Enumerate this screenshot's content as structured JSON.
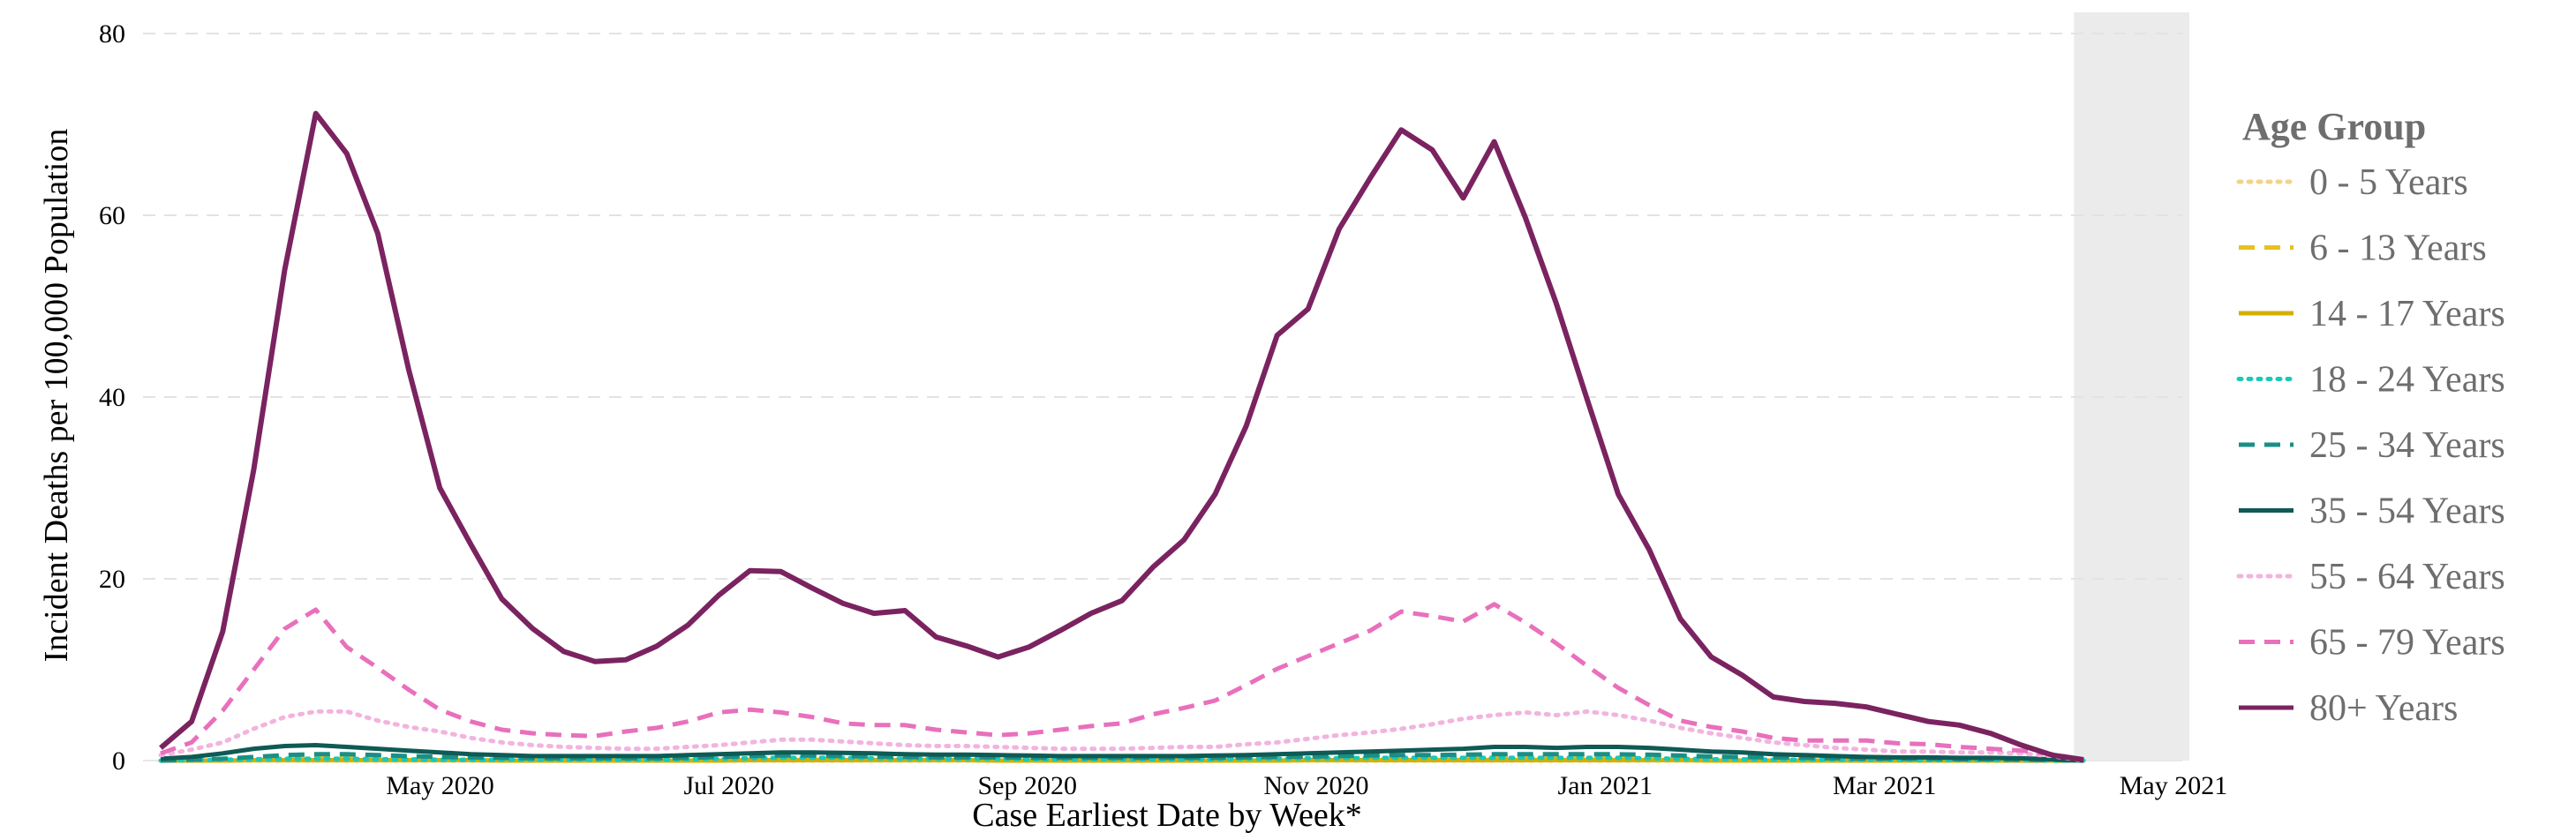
{
  "chart_data": {
    "type": "line",
    "title": "",
    "xlabel": "Case Earliest Date by Week*",
    "ylabel": "Incident Deaths per 100,000 Population",
    "ylim": [
      0,
      80
    ],
    "yticks": [
      0,
      20,
      40,
      60,
      80
    ],
    "x_range_days": [
      0,
      406
    ],
    "xticks": [
      {
        "label": "May 2020",
        "day": 59
      },
      {
        "label": "Jul 2020",
        "day": 120
      },
      {
        "label": "Sep 2020",
        "day": 183
      },
      {
        "label": "Nov 2020",
        "day": 244
      },
      {
        "label": "Jan 2021",
        "day": 305
      },
      {
        "label": "Mar 2021",
        "day": 364
      },
      {
        "label": "May 2021",
        "day": 425
      }
    ],
    "x_origin_note": "day 0 = 2020-03-03",
    "shaded_region_days": [
      404,
      425
    ],
    "legend_title": "Age Group",
    "series": [
      {
        "name": "0 - 5 Years",
        "color": "#f0d48a",
        "dash": "dotted",
        "values": [
          0,
          0,
          0,
          0,
          0,
          0,
          0,
          0,
          0,
          0,
          0,
          0,
          0,
          0,
          0,
          0,
          0,
          0,
          0,
          0,
          0,
          0,
          0,
          0,
          0,
          0,
          0,
          0,
          0,
          0,
          0,
          0,
          0,
          0,
          0,
          0,
          0,
          0,
          0,
          0,
          0,
          0,
          0,
          0,
          0,
          0,
          0,
          0,
          0,
          0,
          0,
          0,
          0,
          0,
          0,
          0,
          0,
          0,
          0,
          0,
          0,
          0,
          0
        ]
      },
      {
        "name": "6 - 13 Years",
        "color": "#e8c020",
        "dash": "dashed",
        "values": [
          0,
          0.05,
          0.1,
          0.2,
          0.3,
          0.4,
          0.4,
          0.35,
          0.3,
          0.25,
          0.2,
          0.15,
          0.15,
          0.1,
          0.1,
          0.1,
          0.1,
          0.1,
          0.15,
          0.2,
          0.25,
          0.3,
          0.3,
          0.3,
          0.25,
          0.2,
          0.2,
          0.2,
          0.15,
          0.15,
          0.15,
          0.15,
          0.2,
          0.2,
          0.2,
          0.25,
          0.3,
          0.35,
          0.4,
          0.4,
          0.4,
          0.4,
          0.45,
          0.5,
          0.45,
          0.4,
          0.45,
          0.4,
          0.35,
          0.3,
          0.25,
          0.2,
          0.2,
          0.15,
          0.15,
          0.1,
          0.1,
          0.1,
          0.1,
          0.05,
          0.05,
          0.05,
          0
        ]
      },
      {
        "name": "14 - 17 Years",
        "color": "#d4b000",
        "dash": "solid",
        "values": [
          0,
          0,
          0,
          0.05,
          0.05,
          0.05,
          0.05,
          0.05,
          0.05,
          0.05,
          0.05,
          0,
          0,
          0,
          0,
          0,
          0,
          0,
          0,
          0.05,
          0.05,
          0.05,
          0.05,
          0.05,
          0.05,
          0.05,
          0.05,
          0,
          0,
          0,
          0,
          0,
          0,
          0,
          0,
          0,
          0,
          0.05,
          0.05,
          0.05,
          0.05,
          0.05,
          0.05,
          0.05,
          0.05,
          0.05,
          0.05,
          0.05,
          0.05,
          0.05,
          0,
          0,
          0,
          0,
          0,
          0,
          0,
          0,
          0,
          0,
          0,
          0,
          0
        ]
      },
      {
        "name": "18 - 24 Years",
        "color": "#1cc8b8",
        "dash": "dotted",
        "values": [
          0,
          0.05,
          0.1,
          0.15,
          0.2,
          0.2,
          0.2,
          0.15,
          0.15,
          0.1,
          0.1,
          0.1,
          0.1,
          0.1,
          0.1,
          0.1,
          0.1,
          0.15,
          0.2,
          0.25,
          0.3,
          0.3,
          0.3,
          0.25,
          0.2,
          0.2,
          0.2,
          0.2,
          0.15,
          0.15,
          0.15,
          0.15,
          0.15,
          0.15,
          0.15,
          0.2,
          0.2,
          0.25,
          0.25,
          0.3,
          0.3,
          0.3,
          0.3,
          0.3,
          0.3,
          0.3,
          0.3,
          0.3,
          0.25,
          0.2,
          0.15,
          0.15,
          0.1,
          0.1,
          0.1,
          0.1,
          0.1,
          0.05,
          0.05,
          0.05,
          0.05,
          0,
          0
        ]
      },
      {
        "name": "25 - 34 Years",
        "color": "#1a8f86",
        "dash": "dashed",
        "values": [
          0,
          0.1,
          0.2,
          0.4,
          0.6,
          0.7,
          0.7,
          0.6,
          0.5,
          0.4,
          0.35,
          0.3,
          0.25,
          0.25,
          0.25,
          0.25,
          0.25,
          0.3,
          0.4,
          0.5,
          0.55,
          0.55,
          0.5,
          0.45,
          0.4,
          0.35,
          0.35,
          0.35,
          0.3,
          0.3,
          0.3,
          0.3,
          0.3,
          0.3,
          0.3,
          0.35,
          0.4,
          0.45,
          0.5,
          0.55,
          0.6,
          0.6,
          0.65,
          0.7,
          0.7,
          0.7,
          0.7,
          0.7,
          0.65,
          0.55,
          0.45,
          0.4,
          0.35,
          0.3,
          0.25,
          0.2,
          0.2,
          0.2,
          0.15,
          0.15,
          0.1,
          0.05,
          0
        ]
      },
      {
        "name": "35 - 54 Years",
        "color": "#0f5a55",
        "dash": "solid",
        "values": [
          0.2,
          0.4,
          0.8,
          1.3,
          1.6,
          1.7,
          1.5,
          1.3,
          1.1,
          0.9,
          0.7,
          0.6,
          0.5,
          0.5,
          0.5,
          0.5,
          0.5,
          0.6,
          0.7,
          0.8,
          0.9,
          0.9,
          0.85,
          0.8,
          0.7,
          0.65,
          0.65,
          0.6,
          0.55,
          0.5,
          0.5,
          0.5,
          0.5,
          0.5,
          0.55,
          0.6,
          0.7,
          0.8,
          0.9,
          1.0,
          1.1,
          1.2,
          1.3,
          1.5,
          1.5,
          1.4,
          1.5,
          1.5,
          1.4,
          1.2,
          1.0,
          0.9,
          0.7,
          0.6,
          0.5,
          0.4,
          0.35,
          0.35,
          0.3,
          0.3,
          0.25,
          0.15,
          0
        ]
      },
      {
        "name": "55 - 64 Years",
        "color": "#f2b4de",
        "dash": "dotted",
        "values": [
          0.6,
          1.2,
          2.0,
          3.5,
          4.8,
          5.4,
          5.4,
          4.4,
          3.7,
          3.2,
          2.5,
          2.0,
          1.7,
          1.5,
          1.4,
          1.3,
          1.3,
          1.5,
          1.7,
          2.0,
          2.3,
          2.3,
          2.1,
          1.9,
          1.7,
          1.6,
          1.6,
          1.5,
          1.4,
          1.3,
          1.3,
          1.3,
          1.4,
          1.5,
          1.5,
          1.8,
          2.0,
          2.4,
          2.8,
          3.1,
          3.5,
          4.0,
          4.6,
          5.0,
          5.3,
          5.0,
          5.4,
          5.0,
          4.4,
          3.6,
          3.0,
          2.5,
          2.0,
          1.7,
          1.4,
          1.2,
          1.0,
          1.0,
          0.9,
          0.9,
          0.8,
          0.5,
          0
        ]
      },
      {
        "name": "65 - 79 Years",
        "color": "#e870bc",
        "dash": "dashed",
        "values": [
          0.8,
          2.0,
          5.5,
          10.0,
          14.5,
          16.6,
          12.5,
          10.2,
          7.8,
          5.6,
          4.3,
          3.4,
          3.0,
          2.8,
          2.7,
          3.2,
          3.6,
          4.3,
          5.3,
          5.6,
          5.3,
          4.8,
          4.1,
          3.9,
          3.9,
          3.4,
          3.1,
          2.8,
          3.0,
          3.4,
          3.8,
          4.1,
          5.1,
          5.8,
          6.6,
          8.3,
          10.1,
          11.5,
          12.9,
          14.3,
          16.4,
          15.9,
          15.3,
          17.2,
          15.2,
          12.9,
          10.4,
          8.0,
          6.1,
          4.4,
          3.7,
          3.2,
          2.5,
          2.2,
          2.2,
          2.2,
          1.9,
          1.8,
          1.5,
          1.3,
          1.1,
          0.7,
          0.1
        ]
      },
      {
        "name": "80+ Years",
        "color": "#7a2360",
        "dash": "solid",
        "values": [
          1.4,
          4.3,
          14.2,
          32.0,
          54.0,
          71.2,
          66.8,
          58.0,
          43.0,
          30.0,
          23.8,
          17.8,
          14.5,
          12.0,
          10.9,
          11.1,
          12.6,
          14.9,
          18.2,
          20.9,
          20.8,
          19.0,
          17.3,
          16.2,
          16.5,
          13.6,
          12.6,
          11.4,
          12.5,
          14.3,
          16.2,
          17.6,
          21.3,
          24.3,
          29.3,
          36.8,
          46.8,
          49.7,
          58.5,
          64.1,
          69.4,
          67.2,
          61.9,
          68.1,
          59.8,
          50.3,
          39.7,
          29.3,
          23.2,
          15.6,
          11.4,
          9.4,
          7.0,
          6.5,
          6.3,
          5.9,
          5.1,
          4.3,
          3.9,
          3.0,
          1.7,
          0.6,
          0.1
        ]
      }
    ]
  }
}
